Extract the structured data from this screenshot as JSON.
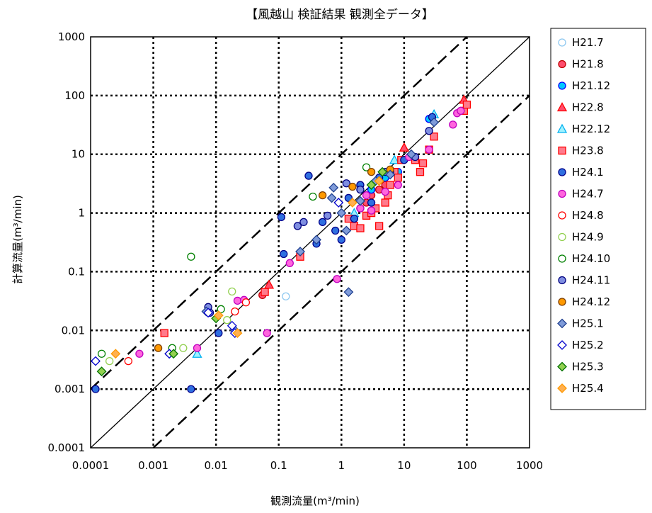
{
  "chart_data": {
    "type": "scatter",
    "title": "【風越山 検証結果 観測全データ】",
    "xlabel": "観測流量(m³/min)",
    "ylabel": "計算流量(m³/min)",
    "xscale": "log",
    "yscale": "log",
    "xlim": [
      0.0001,
      1000
    ],
    "ylim": [
      0.0001,
      1000
    ],
    "xticks": [
      "0.0001",
      "0.001",
      "0.01",
      "0.1",
      "1",
      "10",
      "100",
      "1000"
    ],
    "yticks": [
      "0.0001",
      "0.001",
      "0.01",
      "0.1",
      "1",
      "10",
      "100",
      "1000"
    ],
    "grid": true,
    "legend_position": "right",
    "reference_lines": [
      {
        "kind": "identity",
        "style": "solid",
        "color": "#000000"
      },
      {
        "kind": "y = 10x",
        "style": "dashed",
        "color": "#000000"
      },
      {
        "kind": "y = 0.1x",
        "style": "dashed",
        "color": "#000000"
      }
    ],
    "series": [
      {
        "name": "H21.7",
        "marker": "circle",
        "fill": "#ffffff",
        "stroke": "#8ec8f0",
        "points": [
          [
            0.13,
            0.038
          ]
        ]
      },
      {
        "name": "H21.8",
        "marker": "circle",
        "fill": "#ff4d6d",
        "stroke": "#c00000",
        "points": [
          [
            0.055,
            0.04
          ],
          [
            0.06,
            0.045
          ],
          [
            1.5,
            0.8
          ],
          [
            2.0,
            1.2
          ],
          [
            2.5,
            1.5
          ],
          [
            3.0,
            2.0
          ],
          [
            4.0,
            2.5
          ],
          [
            5.0,
            3.0
          ]
        ]
      },
      {
        "name": "H21.12",
        "marker": "circle",
        "fill": "#00c8ff",
        "stroke": "#0000ff",
        "points": [
          [
            3.0,
            2.5
          ],
          [
            5.0,
            4.0
          ],
          [
            8.0,
            5.0
          ],
          [
            25.0,
            40.0
          ]
        ]
      },
      {
        "name": "H22.8",
        "marker": "triangle",
        "fill": "#ff4d6d",
        "stroke": "#ff0000",
        "points": [
          [
            0.07,
            0.06
          ],
          [
            10.0,
            13.0
          ],
          [
            90.0,
            85.0
          ]
        ]
      },
      {
        "name": "H22.12",
        "marker": "triangle",
        "fill": "#9ff2ff",
        "stroke": "#00b0f0",
        "points": [
          [
            0.005,
            0.004
          ],
          [
            30.0,
            48.0
          ],
          [
            7.0,
            8.0
          ],
          [
            1.6,
            1.0
          ]
        ]
      },
      {
        "name": "H23.8",
        "marker": "square",
        "fill": "#ff7b8c",
        "stroke": "#ff0000",
        "points": [
          [
            0.0015,
            0.009
          ],
          [
            0.06,
            0.045
          ],
          [
            0.22,
            0.18
          ],
          [
            1.3,
            0.8
          ],
          [
            1.6,
            0.6
          ],
          [
            2.0,
            0.55
          ],
          [
            2.5,
            0.9
          ],
          [
            3.0,
            1.0
          ],
          [
            3.5,
            1.2
          ],
          [
            4.0,
            0.6
          ],
          [
            5.0,
            1.5
          ],
          [
            5.5,
            2.0
          ],
          [
            6.0,
            3.0
          ],
          [
            7.0,
            5.0
          ],
          [
            8.0,
            4.0
          ],
          [
            9.0,
            8.0
          ],
          [
            15.0,
            8.0
          ],
          [
            18.0,
            5.0
          ],
          [
            20.0,
            7.0
          ],
          [
            25.0,
            12.0
          ],
          [
            30.0,
            20.0
          ],
          [
            90.0,
            55.0
          ],
          [
            100.0,
            70.0
          ]
        ]
      },
      {
        "name": "H24.1",
        "marker": "circle",
        "fill": "#2f6fe0",
        "stroke": "#00008b",
        "points": [
          [
            0.00012,
            0.001
          ],
          [
            0.004,
            0.001
          ],
          [
            0.011,
            0.009
          ],
          [
            0.11,
            0.85
          ],
          [
            0.12,
            0.2
          ],
          [
            0.3,
            4.3
          ],
          [
            0.4,
            0.3
          ],
          [
            0.5,
            0.7
          ],
          [
            0.8,
            0.5
          ],
          [
            1.0,
            0.35
          ],
          [
            1.3,
            1.8
          ],
          [
            1.6,
            0.8
          ],
          [
            2.0,
            3.0
          ],
          [
            3.0,
            1.5
          ],
          [
            4.0,
            4.0
          ],
          [
            6.0,
            5.0
          ],
          [
            10.0,
            8.0
          ],
          [
            28.0,
            43.0
          ]
        ]
      },
      {
        "name": "H24.7",
        "marker": "circle",
        "fill": "#ff66dd",
        "stroke": "#c000c0",
        "points": [
          [
            0.0006,
            0.004
          ],
          [
            0.005,
            0.005
          ],
          [
            0.022,
            0.032
          ],
          [
            0.028,
            0.033
          ],
          [
            0.065,
            0.009
          ],
          [
            0.15,
            0.14
          ],
          [
            0.85,
            0.075
          ],
          [
            2.0,
            1.2
          ],
          [
            2.5,
            2.0
          ],
          [
            3.0,
            1.1
          ],
          [
            5.0,
            2.3
          ],
          [
            8.0,
            3.0
          ],
          [
            12.0,
            9.0
          ],
          [
            25.0,
            12.0
          ],
          [
            60.0,
            32.0
          ],
          [
            70.0,
            50.0
          ],
          [
            80.0,
            55.0
          ]
        ]
      },
      {
        "name": "H24.8",
        "marker": "circle",
        "fill": "#ffffff",
        "stroke": "#ff0000",
        "points": [
          [
            0.0004,
            0.003
          ],
          [
            0.02,
            0.021
          ],
          [
            0.03,
            0.03
          ]
        ]
      },
      {
        "name": "H24.9",
        "marker": "circle",
        "fill": "#ffffff",
        "stroke": "#92d050",
        "points": [
          [
            0.0002,
            0.003
          ],
          [
            0.003,
            0.005
          ],
          [
            0.018,
            0.046
          ],
          [
            0.015,
            0.015
          ]
        ]
      },
      {
        "name": "H24.10",
        "marker": "circle",
        "fill": "#ffffff",
        "stroke": "#008000",
        "points": [
          [
            0.00015,
            0.004
          ],
          [
            0.002,
            0.005
          ],
          [
            0.004,
            0.18
          ],
          [
            0.012,
            0.023
          ],
          [
            0.35,
            1.9
          ],
          [
            2.5,
            6.0
          ]
        ]
      },
      {
        "name": "H24.11",
        "marker": "circle",
        "fill": "#7f8ee0",
        "stroke": "#000080",
        "points": [
          [
            0.0075,
            0.025
          ],
          [
            0.008,
            0.02
          ],
          [
            0.2,
            0.6
          ],
          [
            0.25,
            0.7
          ],
          [
            0.6,
            0.9
          ],
          [
            1.2,
            3.2
          ],
          [
            2.0,
            2.5
          ],
          [
            5.0,
            5.0
          ],
          [
            15.0,
            9.0
          ],
          [
            25.0,
            25.0
          ]
        ]
      },
      {
        "name": "H24.12",
        "marker": "circle",
        "fill": "#ff9900",
        "stroke": "#7f3f00",
        "points": [
          [
            0.0012,
            0.005
          ],
          [
            0.5,
            2.0
          ],
          [
            1.5,
            2.8
          ],
          [
            3.0,
            5.0
          ],
          [
            6.0,
            5.5
          ]
        ]
      },
      {
        "name": "H25.1",
        "marker": "diamond",
        "fill": "#7f9bd9",
        "stroke": "#1f3f8f",
        "points": [
          [
            0.0018,
            0.004
          ],
          [
            0.007,
            0.021
          ],
          [
            0.02,
            0.01
          ],
          [
            0.22,
            0.22
          ],
          [
            0.4,
            0.35
          ],
          [
            0.7,
            1.8
          ],
          [
            0.75,
            2.7
          ],
          [
            1.0,
            1.0
          ],
          [
            1.2,
            0.5
          ],
          [
            1.3,
            0.045
          ],
          [
            2.0,
            1.6
          ],
          [
            3.5,
            3.5
          ],
          [
            6.0,
            4.5
          ],
          [
            13.0,
            10.0
          ],
          [
            30.0,
            35.0
          ]
        ]
      },
      {
        "name": "H25.2",
        "marker": "diamond",
        "fill": "#ffffff",
        "stroke": "#0000cc",
        "points": [
          [
            0.00012,
            0.003
          ],
          [
            0.0018,
            0.004
          ],
          [
            0.0075,
            0.02
          ],
          [
            0.018,
            0.012
          ],
          [
            0.02,
            0.009
          ],
          [
            0.9,
            1.5
          ]
        ]
      },
      {
        "name": "H25.3",
        "marker": "diamond",
        "fill": "#92d050",
        "stroke": "#007000",
        "points": [
          [
            0.00015,
            0.002
          ],
          [
            0.0021,
            0.004
          ],
          [
            0.01,
            0.016
          ],
          [
            3.0,
            3.0
          ],
          [
            4.5,
            5.0
          ]
        ]
      },
      {
        "name": "H25.4",
        "marker": "diamond",
        "fill": "#ffb050",
        "stroke": "#ff9900",
        "points": [
          [
            0.00025,
            0.004
          ],
          [
            0.011,
            0.018
          ],
          [
            0.022,
            0.009
          ],
          [
            1.5,
            1.5
          ],
          [
            4.0,
            3.5
          ]
        ]
      }
    ]
  }
}
